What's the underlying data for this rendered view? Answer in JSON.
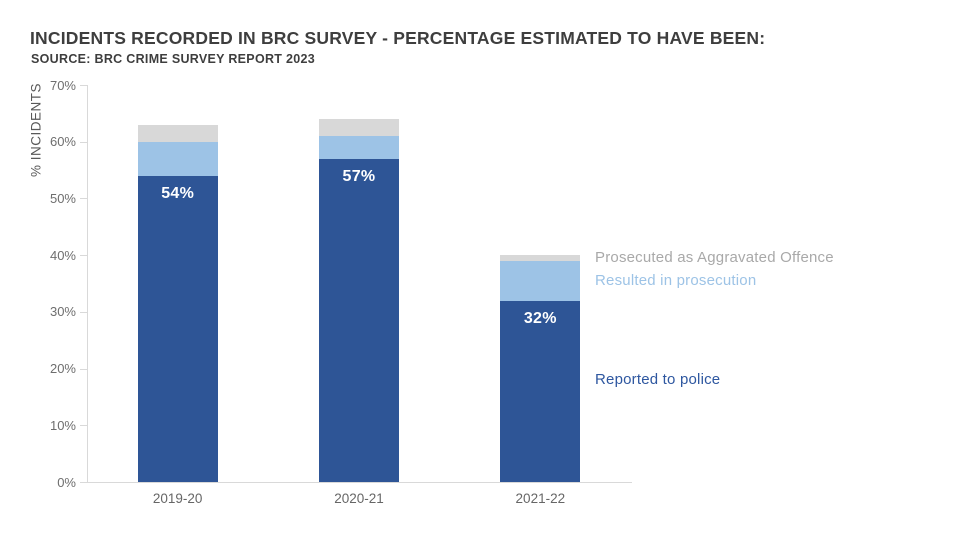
{
  "header": {
    "title": "INCIDENTS RECORDED IN BRC SURVEY - PERCENTAGE ESTIMATED TO HAVE BEEN:",
    "subtitle": "SOURCE: BRC CRIME SURVEY REPORT 2023"
  },
  "chart_data": {
    "type": "bar",
    "stacked": true,
    "title": "INCIDENTS RECORDED IN BRC SURVEY - PERCENTAGE ESTIMATED TO HAVE BEEN:",
    "subtitle": "SOURCE: BRC CRIME SURVEY REPORT 2023",
    "categories": [
      "2019-20",
      "2020-21",
      "2021-22"
    ],
    "series": [
      {
        "name": "Reported to police",
        "color": "#2E5596",
        "values": [
          54,
          57,
          32
        ],
        "show_labels": true,
        "label_format": "{v}%",
        "label_color": "#FFFFFF"
      },
      {
        "name": "Resulted in prosecution",
        "color": "#9DC3E6",
        "values": [
          6,
          4,
          7
        ],
        "show_labels": false
      },
      {
        "name": "Prosecuted as Aggravated Offence",
        "color": "#D8D8D8",
        "values": [
          3,
          3,
          1
        ],
        "show_labels": false
      }
    ],
    "visible_data_labels": [
      "54%",
      "57%",
      "32%"
    ],
    "xlabel": "",
    "ylabel": "% INCIDENTS",
    "ylim": [
      0,
      70
    ],
    "ytick_step": 10,
    "ytick_labels": [
      "0%",
      "10%",
      "20%",
      "30%",
      "40%",
      "50%",
      "60%",
      "70%"
    ],
    "grid": false,
    "legend_position": "right"
  },
  "legend": {
    "items": [
      {
        "label": "Prosecuted as Aggravated Offence",
        "color": "#A9A9A9"
      },
      {
        "label": "Resulted in prosecution",
        "color": "#9DC3E6"
      },
      {
        "label": "Reported to police",
        "color": "#2E57A0"
      }
    ]
  },
  "colors": {
    "background": "#FFFFFF",
    "bar_dark_blue": "#2E5596",
    "bar_light_blue": "#9DC3E6",
    "bar_grey": "#D8D8D8",
    "axis_line": "#D9D9D9",
    "tick_label": "#6E6E6E",
    "title_text": "#3E3E3E",
    "axis_title": "#595959",
    "data_label": "#FFFFFF"
  }
}
